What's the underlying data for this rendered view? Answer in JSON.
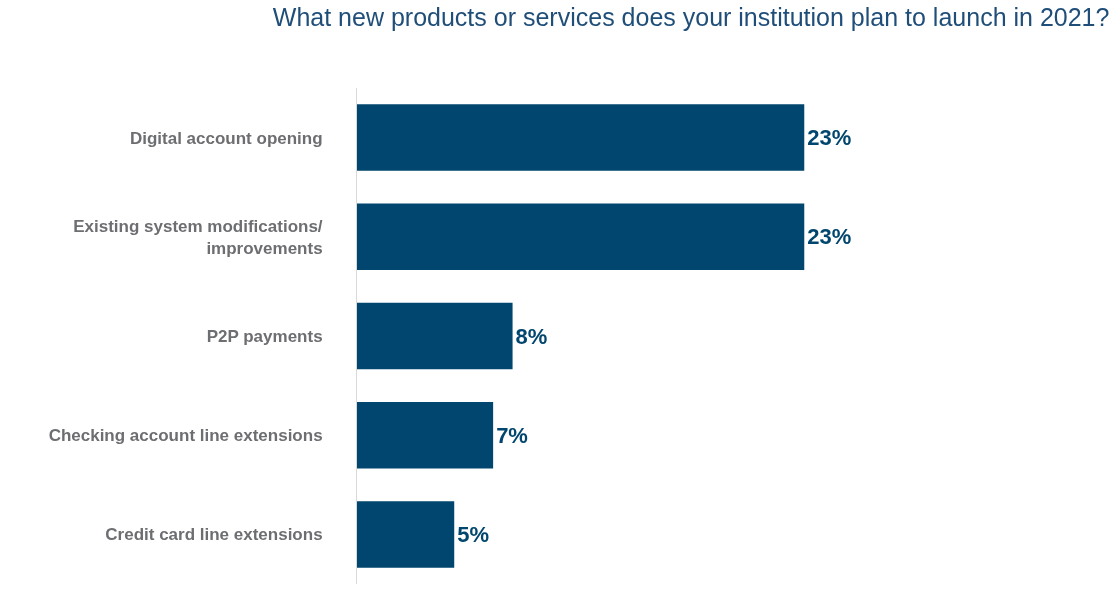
{
  "chart_data": {
    "type": "bar",
    "orientation": "horizontal",
    "title": "What new products or services does your institution plan to launch in 2021?",
    "categories": [
      "Digital account opening",
      "Existing system modifications/\nimprovements",
      "P2P payments",
      "Checking account line extensions",
      "Credit card line extensions"
    ],
    "values": [
      23,
      23,
      8,
      7,
      5
    ],
    "value_labels": [
      "23%",
      "23%",
      "8%",
      "7%",
      "5%"
    ],
    "color": "#00466e",
    "legend": false
  }
}
